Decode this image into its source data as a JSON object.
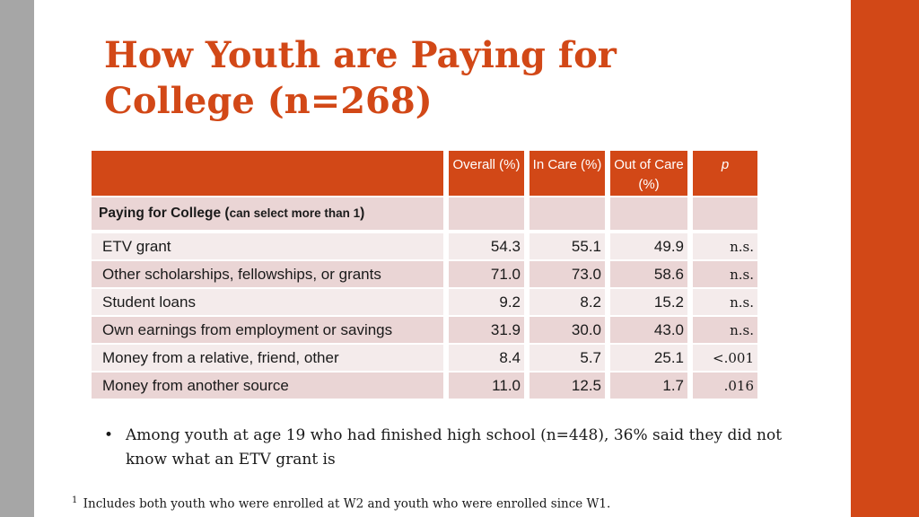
{
  "slide": {
    "title": "How Youth are Paying for College (n=268)",
    "bullet": "Among youth at age 19 who had finished high school (n=448), 36% said they did not know what an ETV grant is",
    "footnote_mark": "1",
    "footnote": "Includes both youth who were enrolled at W2 and youth who were enrolled since W1."
  },
  "table": {
    "headers": [
      "",
      "Overall (%)",
      "In Care (%)",
      "Out of Care (%)",
      "p"
    ],
    "section_label": "Paying for College (",
    "section_label_small": "can select more than 1",
    "section_label_end": ")",
    "rows": [
      {
        "label": "ETV grant",
        "overall": "54.3",
        "in_care": "55.1",
        "out_of_care": "49.9",
        "p": "n.s."
      },
      {
        "label": "Other scholarships, fellowships, or grants",
        "overall": "71.0",
        "in_care": "73.0",
        "out_of_care": "58.6",
        "p": "n.s."
      },
      {
        "label": "Student loans",
        "overall": "9.2",
        "in_care": "8.2",
        "out_of_care": "15.2",
        "p": "n.s."
      },
      {
        "label": "Own earnings from employment or savings",
        "overall": "31.9",
        "in_care": "30.0",
        "out_of_care": "43.0",
        "p": "n.s."
      },
      {
        "label": "Money from a relative, friend, other",
        "overall": "8.4",
        "in_care": "5.7",
        "out_of_care": "25.1",
        "p": "<.001"
      },
      {
        "label": "Money from another source",
        "overall": "11.0",
        "in_care": "12.5",
        "out_of_care": "1.7",
        "p": ".016"
      }
    ]
  },
  "colors": {
    "accent": "#d24817",
    "side_bar": "#a6a6a6",
    "row_dark": "#ead5d5",
    "row_light": "#f4ebeb"
  }
}
